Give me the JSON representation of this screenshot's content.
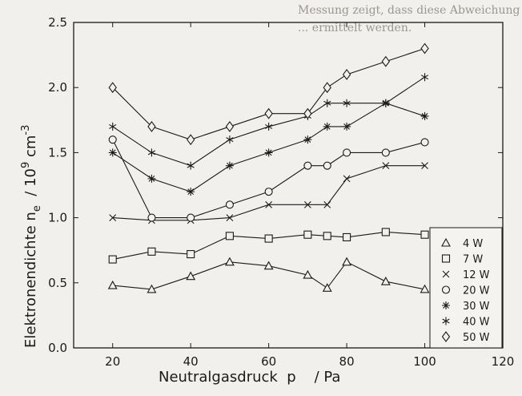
{
  "background_text": {
    "line1": "Messung zeigt, dass diese Abweichung ...",
    "line2": "... ermittelt werden."
  },
  "chart_data": {
    "type": "line",
    "xlabel": "Neutralgasdruck  p    / Pa",
    "ylabel": "Elektronendichte  n_e  / 10^9 cm^-3",
    "ylabel_parts": {
      "main": "Elektronendichte  n",
      "sub": "e",
      "slash": "  / 10",
      "exp9": "9",
      "unit": " cm",
      "expm3": "-3"
    },
    "xlim": [
      10,
      120
    ],
    "ylim": [
      0.0,
      2.5
    ],
    "xticks": [
      20,
      40,
      60,
      80,
      100,
      120
    ],
    "yticks": [
      "0.0",
      "0.5",
      "1.0",
      "1.5",
      "2.0",
      "2.5"
    ],
    "grid": false,
    "legend_position": "bottom-right",
    "series": [
      {
        "name": "4 W",
        "marker": "triangle",
        "x": [
          20,
          30,
          40,
          50,
          60,
          70,
          75,
          80,
          90,
          100
        ],
        "y": [
          0.48,
          0.45,
          0.55,
          0.66,
          0.63,
          0.56,
          0.46,
          0.66,
          0.51,
          0.45
        ]
      },
      {
        "name": "7 W",
        "marker": "square",
        "x": [
          20,
          30,
          40,
          50,
          60,
          70,
          75,
          80,
          90,
          100
        ],
        "y": [
          0.68,
          0.74,
          0.72,
          0.86,
          0.84,
          0.87,
          0.86,
          0.85,
          0.89,
          0.87
        ]
      },
      {
        "name": "12 W",
        "marker": "x",
        "x": [
          20,
          30,
          40,
          50,
          60,
          70,
          75,
          80,
          90,
          100
        ],
        "y": [
          1.0,
          0.98,
          0.98,
          1.0,
          1.1,
          1.1,
          1.1,
          1.3,
          1.4,
          1.4
        ]
      },
      {
        "name": "20 W",
        "marker": "circle",
        "x": [
          20,
          30,
          40,
          50,
          60,
          70,
          75,
          80,
          90,
          100
        ],
        "y": [
          1.6,
          1.0,
          1.0,
          1.1,
          1.2,
          1.4,
          1.4,
          1.5,
          1.5,
          1.58
        ]
      },
      {
        "name": "30 W",
        "marker": "asterisk",
        "x": [
          20,
          30,
          40,
          50,
          60,
          70,
          75,
          80,
          90,
          100
        ],
        "y": [
          1.5,
          1.3,
          1.2,
          1.4,
          1.5,
          1.6,
          1.7,
          1.7,
          1.88,
          1.78
        ]
      },
      {
        "name": "40 W",
        "marker": "star",
        "x": [
          20,
          30,
          40,
          50,
          60,
          70,
          75,
          80,
          90,
          100
        ],
        "y": [
          1.7,
          1.5,
          1.4,
          1.6,
          1.7,
          1.78,
          1.88,
          1.88,
          1.88,
          2.08
        ]
      },
      {
        "name": "50 W",
        "marker": "diamond",
        "x": [
          20,
          30,
          40,
          50,
          60,
          70,
          75,
          80,
          90,
          100
        ],
        "y": [
          2.0,
          1.7,
          1.6,
          1.7,
          1.8,
          1.8,
          2.0,
          2.1,
          2.2,
          2.3
        ]
      }
    ],
    "colors": {
      "ink": "#1a1a1a",
      "background": "#f2f0ec"
    }
  }
}
